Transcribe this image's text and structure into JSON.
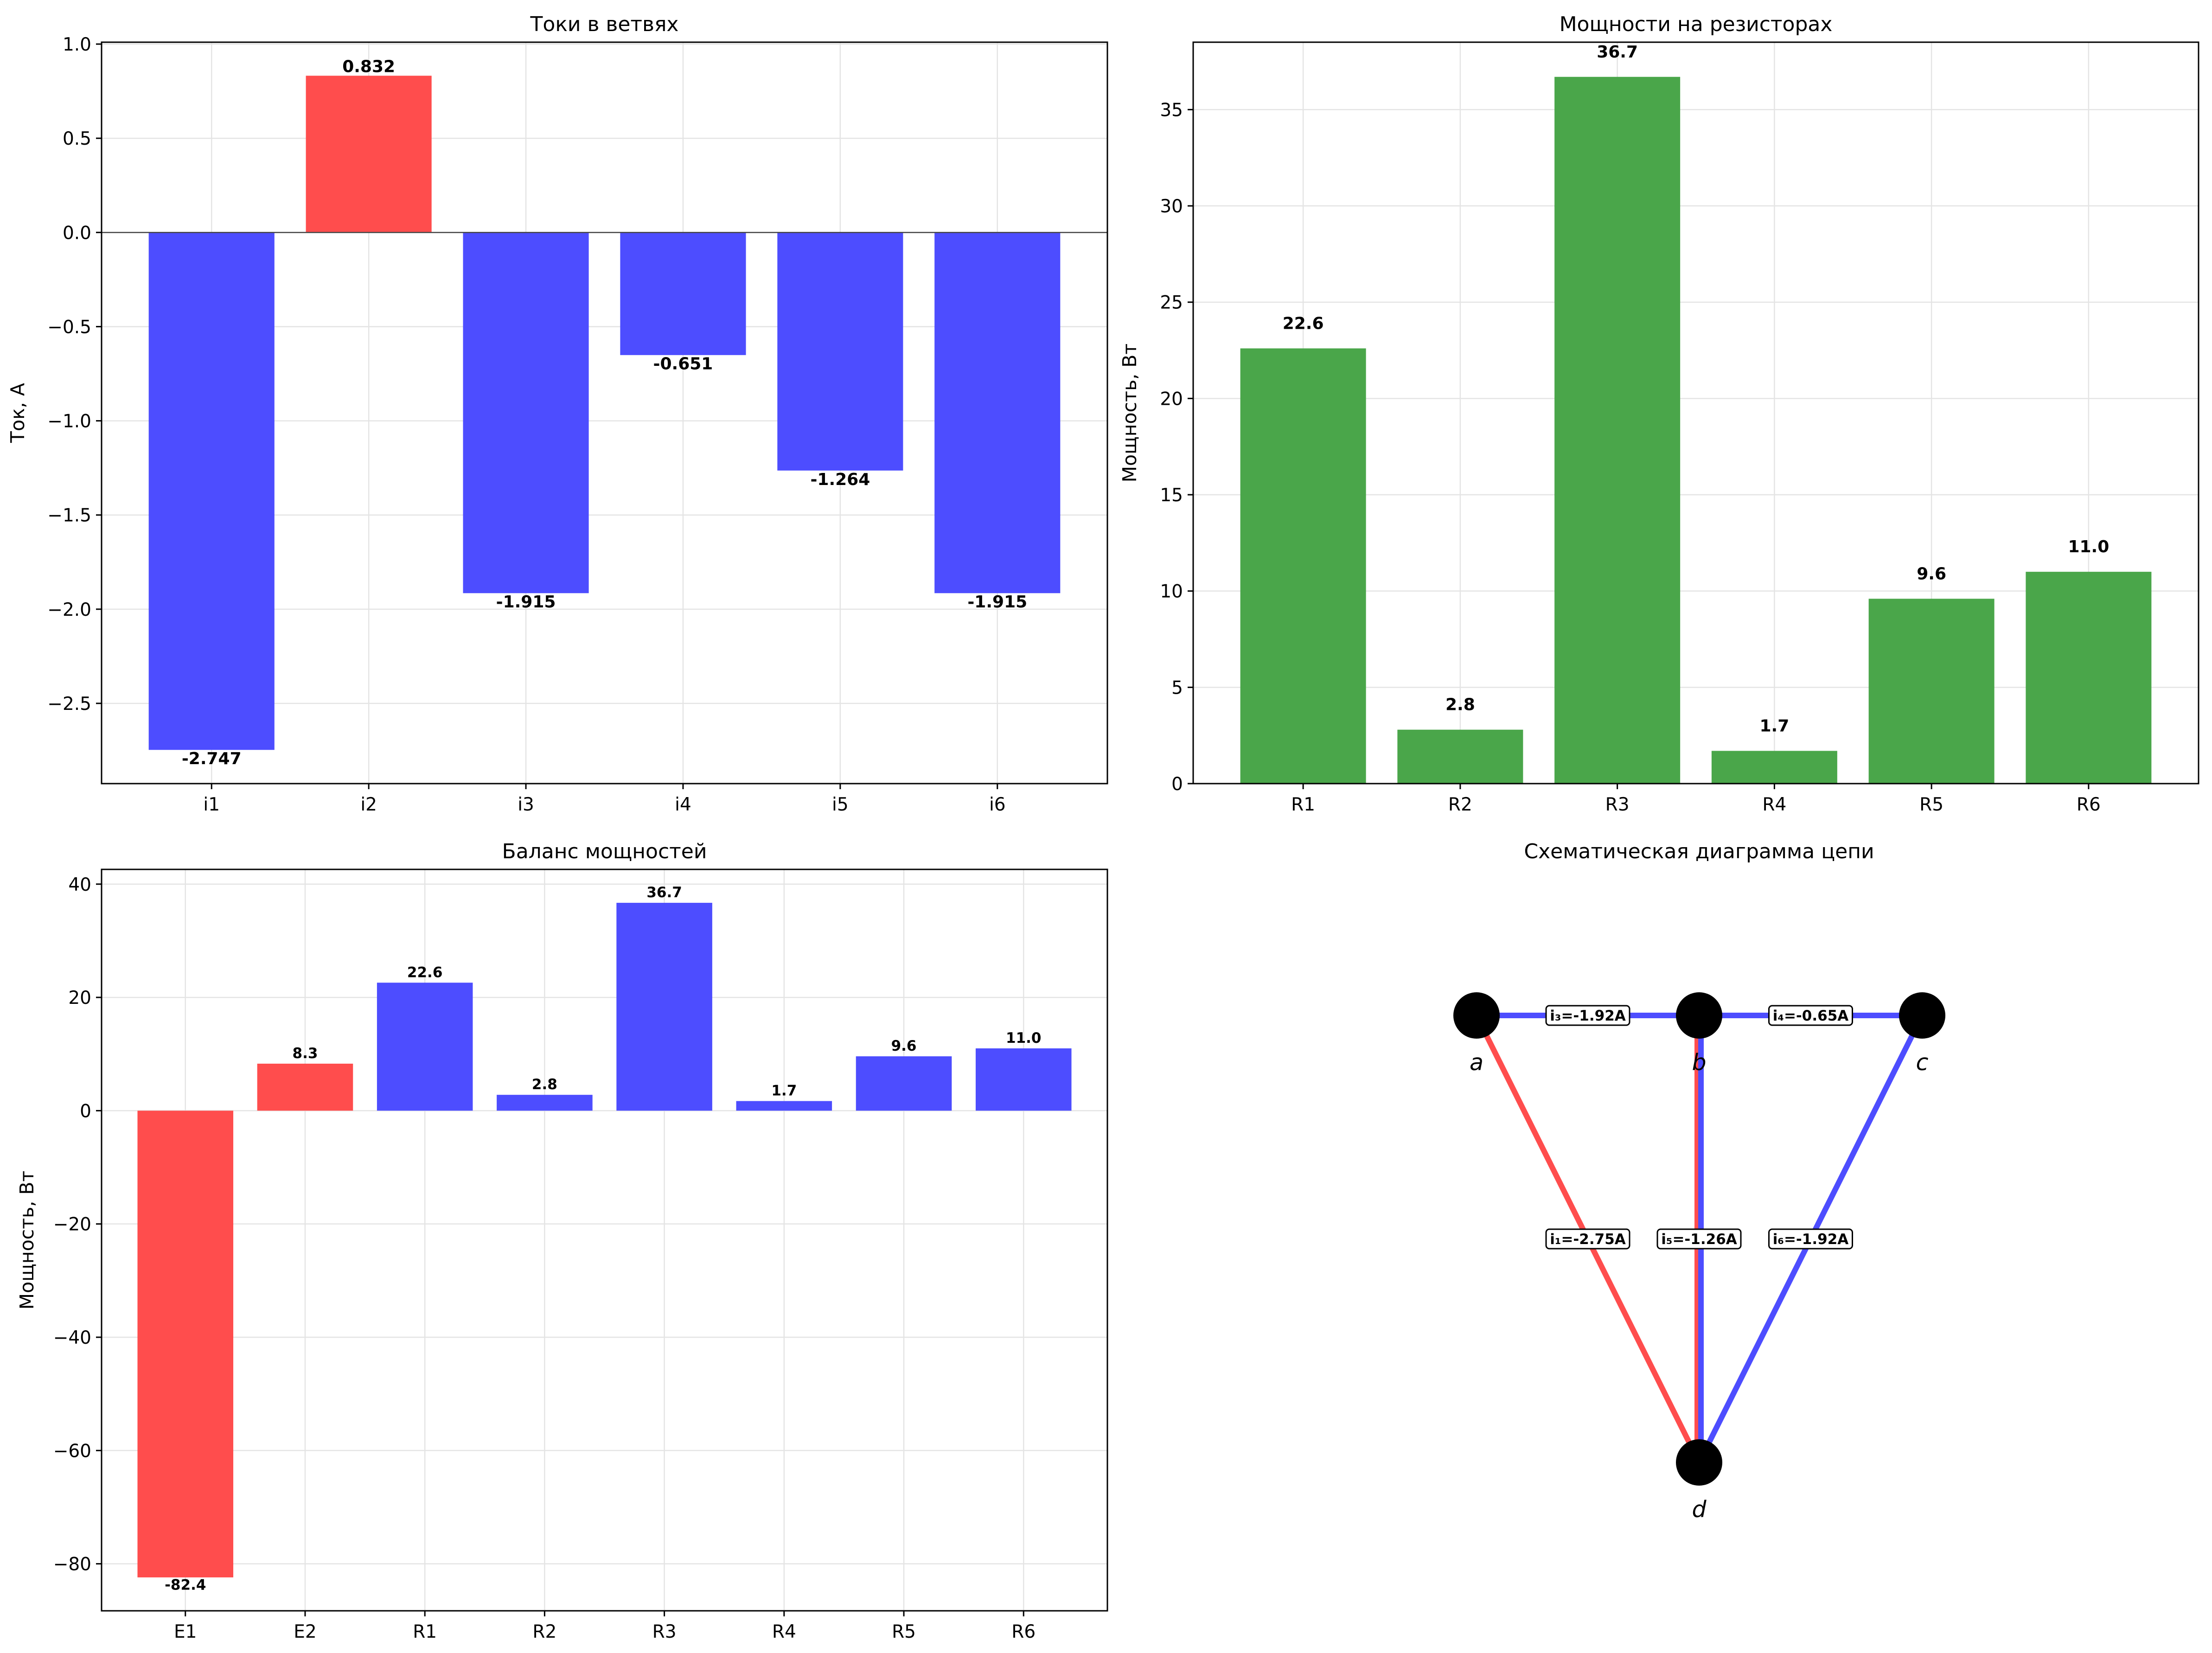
{
  "chart_data": [
    {
      "type": "bar",
      "title": "Токи в ветвях",
      "xlabel": "",
      "ylabel": "Ток, А",
      "categories": [
        "i1",
        "i2",
        "i3",
        "i4",
        "i5",
        "i6"
      ],
      "values": [
        -2.747,
        0.832,
        -1.915,
        -0.651,
        -1.264,
        -1.915
      ],
      "data_labels": [
        "-2.747",
        "0.832",
        "-1.915",
        "-0.651",
        "-1.264",
        "-1.915"
      ],
      "colors": [
        "#4d4dff",
        "#ff4d4d",
        "#4d4dff",
        "#4d4dff",
        "#4d4dff",
        "#4d4dff"
      ],
      "ylim": [
        -2.926,
        1.01
      ],
      "yticks": [
        1.0,
        0.5,
        0.0,
        -0.5,
        -1.0,
        -1.5,
        -2.0,
        -2.5
      ],
      "ytick_labels": [
        "1.0",
        "0.5",
        "0.0",
        "−0.5",
        "−1.0",
        "−1.5",
        "−2.0",
        "−2.5"
      ],
      "zero_line": true,
      "grid": true
    },
    {
      "type": "bar",
      "title": "Мощности на резисторах",
      "xlabel": "",
      "ylabel": "Мощность, Вт",
      "categories": [
        "R1",
        "R2",
        "R3",
        "R4",
        "R5",
        "R6"
      ],
      "values": [
        22.6,
        2.8,
        36.7,
        1.7,
        9.6,
        11.0
      ],
      "data_labels": [
        "22.6",
        "2.8",
        "36.7",
        "1.7",
        "9.6",
        "11.0"
      ],
      "colors": [
        "#4aa64a",
        "#4aa64a",
        "#4aa64a",
        "#4aa64a",
        "#4aa64a",
        "#4aa64a"
      ],
      "ylim": [
        0,
        38.5
      ],
      "yticks": [
        0,
        5,
        10,
        15,
        20,
        25,
        30,
        35
      ],
      "ytick_labels": [
        "0",
        "5",
        "10",
        "15",
        "20",
        "25",
        "30",
        "35"
      ],
      "grid": true
    },
    {
      "type": "bar",
      "title": "Баланс мощностей",
      "xlabel": "",
      "ylabel": "Мощность, Вт",
      "categories": [
        "E1",
        "E2",
        "R1",
        "R2",
        "R3",
        "R4",
        "R5",
        "R6"
      ],
      "values": [
        -82.4,
        8.3,
        22.6,
        2.8,
        36.7,
        1.7,
        9.6,
        11.0
      ],
      "data_labels": [
        "-82.4",
        "8.3",
        "22.6",
        "2.8",
        "36.7",
        "1.7",
        "9.6",
        "11.0"
      ],
      "colors": [
        "#ff4d4d",
        "#ff4d4d",
        "#4d4dff",
        "#4d4dff",
        "#4d4dff",
        "#4d4dff",
        "#4d4dff",
        "#4d4dff"
      ],
      "ylim": [
        -88.3,
        42.6
      ],
      "yticks": [
        40,
        20,
        0,
        -20,
        -40,
        -60,
        -80
      ],
      "ytick_labels": [
        "40",
        "20",
        "0",
        "−20",
        "−40",
        "−60",
        "−80"
      ],
      "grid": true
    }
  ],
  "diagram": {
    "title": "Схематическая диаграмма цепи",
    "nodes": [
      "a",
      "b",
      "c",
      "d"
    ],
    "edges": [
      {
        "from": "a",
        "to": "b",
        "label": "i₃=-1.92A",
        "color": "#4d4dff"
      },
      {
        "from": "b",
        "to": "c",
        "label": "i₄=-0.65A",
        "color": "#4d4dff"
      },
      {
        "from": "a",
        "to": "d",
        "label": "i₁=-2.75A",
        "color": "#ff4d4d"
      },
      {
        "from": "b",
        "to": "d",
        "label": "i₅=-1.26A",
        "color": "#4d4dff"
      },
      {
        "from": "c",
        "to": "d",
        "label": "i₆=-1.92A",
        "color": "#4d4dff"
      },
      {
        "from": "b",
        "to": "d",
        "label": "",
        "color": "#ff4d4d"
      }
    ]
  }
}
